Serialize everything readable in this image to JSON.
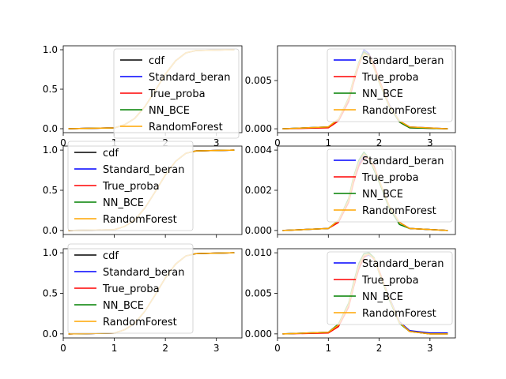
{
  "chart_data": [
    {
      "type": "line",
      "panel": "cdf-row-1",
      "xlim": [
        0,
        3.5
      ],
      "ylim": [
        -0.05,
        1.05
      ],
      "xticks": [
        "0",
        "1",
        "2",
        "3"
      ],
      "yticks": [
        "0.0",
        "0.5",
        "1.0"
      ],
      "show_xticks": true,
      "legend_placement": "top-right",
      "grid": false,
      "x": [
        0.1,
        1.0,
        1.2,
        1.4,
        1.6,
        1.8,
        2.0,
        2.2,
        2.4,
        2.6,
        3.35
      ],
      "series": [
        {
          "name": "cdf",
          "color": "#000000",
          "values": [
            0,
            0.01,
            0.05,
            0.13,
            0.28,
            0.48,
            0.69,
            0.86,
            0.96,
            0.99,
            1.0
          ]
        },
        {
          "name": "Standard_beran",
          "color": "#0000ff",
          "values": [
            0,
            0.01,
            0.05,
            0.13,
            0.28,
            0.48,
            0.69,
            0.86,
            0.96,
            0.99,
            1.0
          ]
        },
        {
          "name": "True_proba",
          "color": "#ff0000",
          "values": [
            0,
            0.01,
            0.05,
            0.13,
            0.28,
            0.48,
            0.69,
            0.86,
            0.96,
            0.99,
            1.0
          ]
        },
        {
          "name": "NN_BCE",
          "color": "#008000",
          "values": [
            0,
            0.01,
            0.05,
            0.13,
            0.28,
            0.48,
            0.69,
            0.86,
            0.96,
            0.99,
            1.0
          ]
        },
        {
          "name": "RandomForest",
          "color": "#ffa500",
          "values": [
            0,
            0.01,
            0.05,
            0.13,
            0.28,
            0.48,
            0.69,
            0.86,
            0.96,
            0.99,
            1.0
          ]
        }
      ]
    },
    {
      "type": "line",
      "panel": "density-row-1",
      "xlim": [
        0,
        3.5
      ],
      "ylim": [
        -0.0004,
        0.0086
      ],
      "xticks": [
        "0",
        "1",
        "2",
        "3"
      ],
      "yticks": [
        "0.000",
        "0.005"
      ],
      "show_xticks": true,
      "legend_placement": "top-right",
      "grid": false,
      "x": [
        0.1,
        1.0,
        1.2,
        1.4,
        1.5,
        1.6,
        1.7,
        1.8,
        1.9,
        2.0,
        2.2,
        2.4,
        2.6,
        3.35
      ],
      "series": [
        {
          "name": "Standard_beran",
          "color": "#0000ff",
          "values": [
            0,
            0.0002,
            0.0009,
            0.003,
            0.005,
            0.0068,
            0.0082,
            0.0078,
            0.0065,
            0.005,
            0.0025,
            0.0008,
            0.0002,
            0.0
          ]
        },
        {
          "name": "True_proba",
          "color": "#ff0000",
          "values": [
            0,
            0.0001,
            0.0008,
            0.0028,
            0.0048,
            0.0066,
            0.0079,
            0.0077,
            0.0066,
            0.0051,
            0.0024,
            0.0007,
            0.0001,
            0.0
          ]
        },
        {
          "name": "NN_BCE",
          "color": "#008000",
          "values": [
            0,
            0.0002,
            0.001,
            0.0032,
            0.0052,
            0.0069,
            0.008,
            0.0076,
            0.0063,
            0.0048,
            0.0023,
            0.0007,
            0.0001,
            0.0
          ]
        },
        {
          "name": "RandomForest",
          "color": "#ffa500",
          "values": [
            0,
            0.0002,
            0.001,
            0.0031,
            0.0051,
            0.0068,
            0.0078,
            0.0075,
            0.0063,
            0.0049,
            0.0024,
            0.0008,
            0.0002,
            0.0
          ]
        }
      ]
    },
    {
      "type": "line",
      "panel": "cdf-row-2",
      "xlim": [
        0,
        3.5
      ],
      "ylim": [
        -0.05,
        1.05
      ],
      "xticks": [
        "0",
        "1",
        "2",
        "3"
      ],
      "yticks": [
        "0.0",
        "0.5",
        "1.0"
      ],
      "show_xticks": false,
      "legend_placement": "top-left",
      "grid": false,
      "x": [
        0.1,
        1.0,
        1.2,
        1.4,
        1.6,
        1.8,
        2.0,
        2.2,
        2.4,
        2.6,
        3.35
      ],
      "series": [
        {
          "name": "cdf",
          "color": "#000000",
          "values": [
            0,
            0.01,
            0.05,
            0.13,
            0.28,
            0.48,
            0.69,
            0.86,
            0.96,
            0.99,
            1.0
          ]
        },
        {
          "name": "Standard_beran",
          "color": "#0000ff",
          "values": [
            0,
            0.01,
            0.05,
            0.13,
            0.28,
            0.48,
            0.69,
            0.86,
            0.96,
            0.99,
            1.0
          ]
        },
        {
          "name": "True_proba",
          "color": "#ff0000",
          "values": [
            0,
            0.01,
            0.05,
            0.13,
            0.28,
            0.48,
            0.69,
            0.86,
            0.96,
            0.99,
            1.0
          ]
        },
        {
          "name": "NN_BCE",
          "color": "#008000",
          "values": [
            0,
            0.01,
            0.05,
            0.13,
            0.28,
            0.48,
            0.69,
            0.86,
            0.96,
            0.99,
            1.0
          ]
        },
        {
          "name": "RandomForest",
          "color": "#ffa500",
          "values": [
            0,
            0.01,
            0.05,
            0.13,
            0.28,
            0.48,
            0.69,
            0.86,
            0.96,
            0.99,
            1.0
          ]
        }
      ]
    },
    {
      "type": "line",
      "panel": "density-row-2",
      "xlim": [
        0,
        3.5
      ],
      "ylim": [
        -0.0002,
        0.0042
      ],
      "xticks": [
        "0",
        "1",
        "2",
        "3"
      ],
      "yticks": [
        "0.000",
        "0.002",
        "0.004"
      ],
      "show_xticks": false,
      "legend_placement": "top-right",
      "grid": false,
      "x": [
        0.1,
        1.0,
        1.2,
        1.4,
        1.5,
        1.6,
        1.7,
        1.8,
        1.9,
        2.0,
        2.2,
        2.4,
        2.6,
        3.35
      ],
      "series": [
        {
          "name": "Standard_beran",
          "color": "#0000ff",
          "values": [
            0,
            0.0001,
            0.0005,
            0.0015,
            0.0025,
            0.0033,
            0.0037,
            0.0036,
            0.0031,
            0.0025,
            0.0012,
            0.0004,
            0.0001,
            0.0
          ]
        },
        {
          "name": "True_proba",
          "color": "#ff0000",
          "values": [
            0,
            0.0001,
            0.0004,
            0.0014,
            0.0024,
            0.0032,
            0.0036,
            0.0036,
            0.0032,
            0.0025,
            0.0012,
            0.0004,
            0.0001,
            0.0
          ]
        },
        {
          "name": "NN_BCE",
          "color": "#008000",
          "values": [
            0,
            0.0001,
            0.0005,
            0.0016,
            0.0027,
            0.0035,
            0.0039,
            0.0036,
            0.003,
            0.0024,
            0.0011,
            0.0003,
            0.0001,
            0.0
          ]
        },
        {
          "name": "RandomForest",
          "color": "#ffa500",
          "values": [
            0,
            0.0001,
            0.0005,
            0.0015,
            0.0026,
            0.0034,
            0.0038,
            0.0036,
            0.0031,
            0.0025,
            0.0012,
            0.0004,
            0.0001,
            0.0
          ]
        }
      ]
    },
    {
      "type": "line",
      "panel": "cdf-row-3",
      "xlim": [
        0,
        3.5
      ],
      "ylim": [
        -0.05,
        1.05
      ],
      "xticks": [
        "0",
        "1",
        "2",
        "3"
      ],
      "yticks": [
        "0.0",
        "0.5",
        "1.0"
      ],
      "show_xticks": true,
      "legend_placement": "top-left",
      "grid": false,
      "x": [
        0.1,
        1.0,
        1.2,
        1.4,
        1.6,
        1.8,
        2.0,
        2.2,
        2.4,
        2.6,
        3.35
      ],
      "series": [
        {
          "name": "cdf",
          "color": "#000000",
          "values": [
            0,
            0.01,
            0.05,
            0.13,
            0.28,
            0.48,
            0.69,
            0.86,
            0.96,
            0.99,
            1.0
          ]
        },
        {
          "name": "Standard_beran",
          "color": "#0000ff",
          "values": [
            0,
            0.01,
            0.05,
            0.13,
            0.28,
            0.48,
            0.69,
            0.86,
            0.96,
            0.99,
            1.0
          ]
        },
        {
          "name": "True_proba",
          "color": "#ff0000",
          "values": [
            0,
            0.01,
            0.05,
            0.13,
            0.28,
            0.48,
            0.69,
            0.86,
            0.96,
            0.99,
            1.0
          ]
        },
        {
          "name": "NN_BCE",
          "color": "#008000",
          "values": [
            0,
            0.01,
            0.05,
            0.13,
            0.28,
            0.48,
            0.69,
            0.86,
            0.96,
            0.99,
            1.0
          ]
        },
        {
          "name": "RandomForest",
          "color": "#ffa500",
          "values": [
            0,
            0.01,
            0.05,
            0.13,
            0.28,
            0.48,
            0.69,
            0.86,
            0.96,
            0.99,
            1.0
          ]
        }
      ]
    },
    {
      "type": "line",
      "panel": "density-row-3",
      "xlim": [
        0,
        3.5
      ],
      "ylim": [
        -0.0005,
        0.0105
      ],
      "xticks": [
        "0",
        "1",
        "2",
        "3"
      ],
      "yticks": [
        "0.000",
        "0.005",
        "0.010"
      ],
      "show_xticks": true,
      "legend_placement": "top-right",
      "grid": false,
      "x": [
        0.1,
        1.0,
        1.2,
        1.4,
        1.5,
        1.6,
        1.7,
        1.8,
        1.9,
        2.0,
        2.2,
        2.4,
        2.6,
        3.0,
        3.35
      ],
      "series": [
        {
          "name": "Standard_beran",
          "color": "#0000ff",
          "values": [
            0,
            0.0002,
            0.001,
            0.0035,
            0.006,
            0.0082,
            0.0095,
            0.0097,
            0.0093,
            0.0077,
            0.0045,
            0.0015,
            0.0004,
            0.0001,
            0.0001
          ]
        },
        {
          "name": "True_proba",
          "color": "#ff0000",
          "values": [
            0,
            0.0001,
            0.0009,
            0.0033,
            0.0058,
            0.008,
            0.0094,
            0.0099,
            0.0092,
            0.0078,
            0.0043,
            0.0014,
            0.0003,
            0.0,
            0.0
          ]
        },
        {
          "name": "NN_BCE",
          "color": "#008000",
          "values": [
            0,
            0.0002,
            0.0012,
            0.0038,
            0.0064,
            0.0087,
            0.0099,
            0.01,
            0.0094,
            0.0075,
            0.0042,
            0.0013,
            0.0003,
            0.0,
            0.0
          ]
        },
        {
          "name": "RandomForest",
          "color": "#ffa500",
          "values": [
            0,
            0.0002,
            0.0011,
            0.0036,
            0.0061,
            0.0084,
            0.0097,
            0.0098,
            0.0093,
            0.0076,
            0.0044,
            0.0014,
            0.0003,
            0.0,
            0.0
          ]
        }
      ]
    }
  ]
}
